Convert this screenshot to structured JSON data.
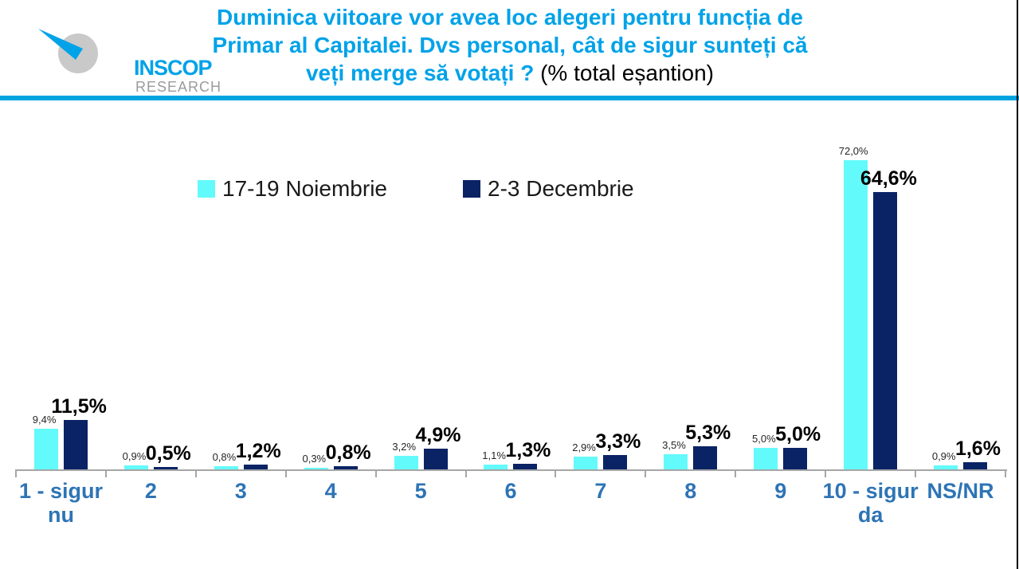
{
  "logo": {
    "name": "INSCOP",
    "sub": "RESEARCH"
  },
  "header": {
    "title_line1": "Duminica viitoare vor avea loc alegeri pentru funcția de",
    "title_line2": "Primar al Capitalei. Dvs personal, cât de sigur sunteți că",
    "title_line3_blue": "veți merge să votați ?",
    "title_line3_black": " (% total eșantion)"
  },
  "legend": [
    {
      "label": "17-19 Noiembrie",
      "color": "#63FAFB"
    },
    {
      "label": "2-3 Decembrie",
      "color": "#0A2365"
    }
  ],
  "chart_data": {
    "type": "bar",
    "title": "Duminica viitoare vor avea loc alegeri pentru funcția de Primar al Capitalei. Dvs personal, cât de sigur sunteți că veți merge să votați ? (% total eșantion)",
    "categories": [
      "1 - sigur nu",
      "2",
      "3",
      "4",
      "5",
      "6",
      "7",
      "8",
      "9",
      "10 - sigur da",
      "NS/NR"
    ],
    "category_lines": [
      [
        "1 - sigur",
        "nu"
      ],
      [
        "2"
      ],
      [
        "3"
      ],
      [
        "4"
      ],
      [
        "5"
      ],
      [
        "6"
      ],
      [
        "7"
      ],
      [
        "8"
      ],
      [
        "9"
      ],
      [
        "10 - sigur",
        "da"
      ],
      [
        "NS/NR"
      ]
    ],
    "series": [
      {
        "name": "17-19 Noiembrie",
        "color": "#63FAFB",
        "values": [
          9.4,
          0.9,
          0.8,
          0.3,
          3.2,
          1.1,
          2.9,
          3.5,
          5.0,
          72.0,
          0.9
        ],
        "labels": [
          "9,4%",
          "0,9%",
          "0,8%",
          "0,3%",
          "3,2%",
          "1,1%",
          "2,9%",
          "3,5%",
          "5,0%",
          "72,0%",
          "0,9%"
        ]
      },
      {
        "name": "2-3 Decembrie",
        "color": "#0A2365",
        "values": [
          11.5,
          0.5,
          1.2,
          0.8,
          4.9,
          1.3,
          3.3,
          5.3,
          5.0,
          64.6,
          1.6
        ],
        "labels": [
          "11,5%",
          "0,5%",
          "1,2%",
          "0,8%",
          "4,9%",
          "1,3%",
          "3,3%",
          "5,3%",
          "5,0%",
          "64,6%",
          "1,6%"
        ]
      }
    ],
    "ylim": [
      0,
      75
    ],
    "grid": false,
    "legend_position": "top"
  },
  "colors": {
    "series1": "#63FAFB",
    "series2": "#0A2365",
    "title_blue": "#00A2E8",
    "divider_blue": "#00A3E0",
    "category_label": "#2E74B5",
    "axis": "#A6A6A6",
    "logo_gray": "#C9C9C9"
  }
}
